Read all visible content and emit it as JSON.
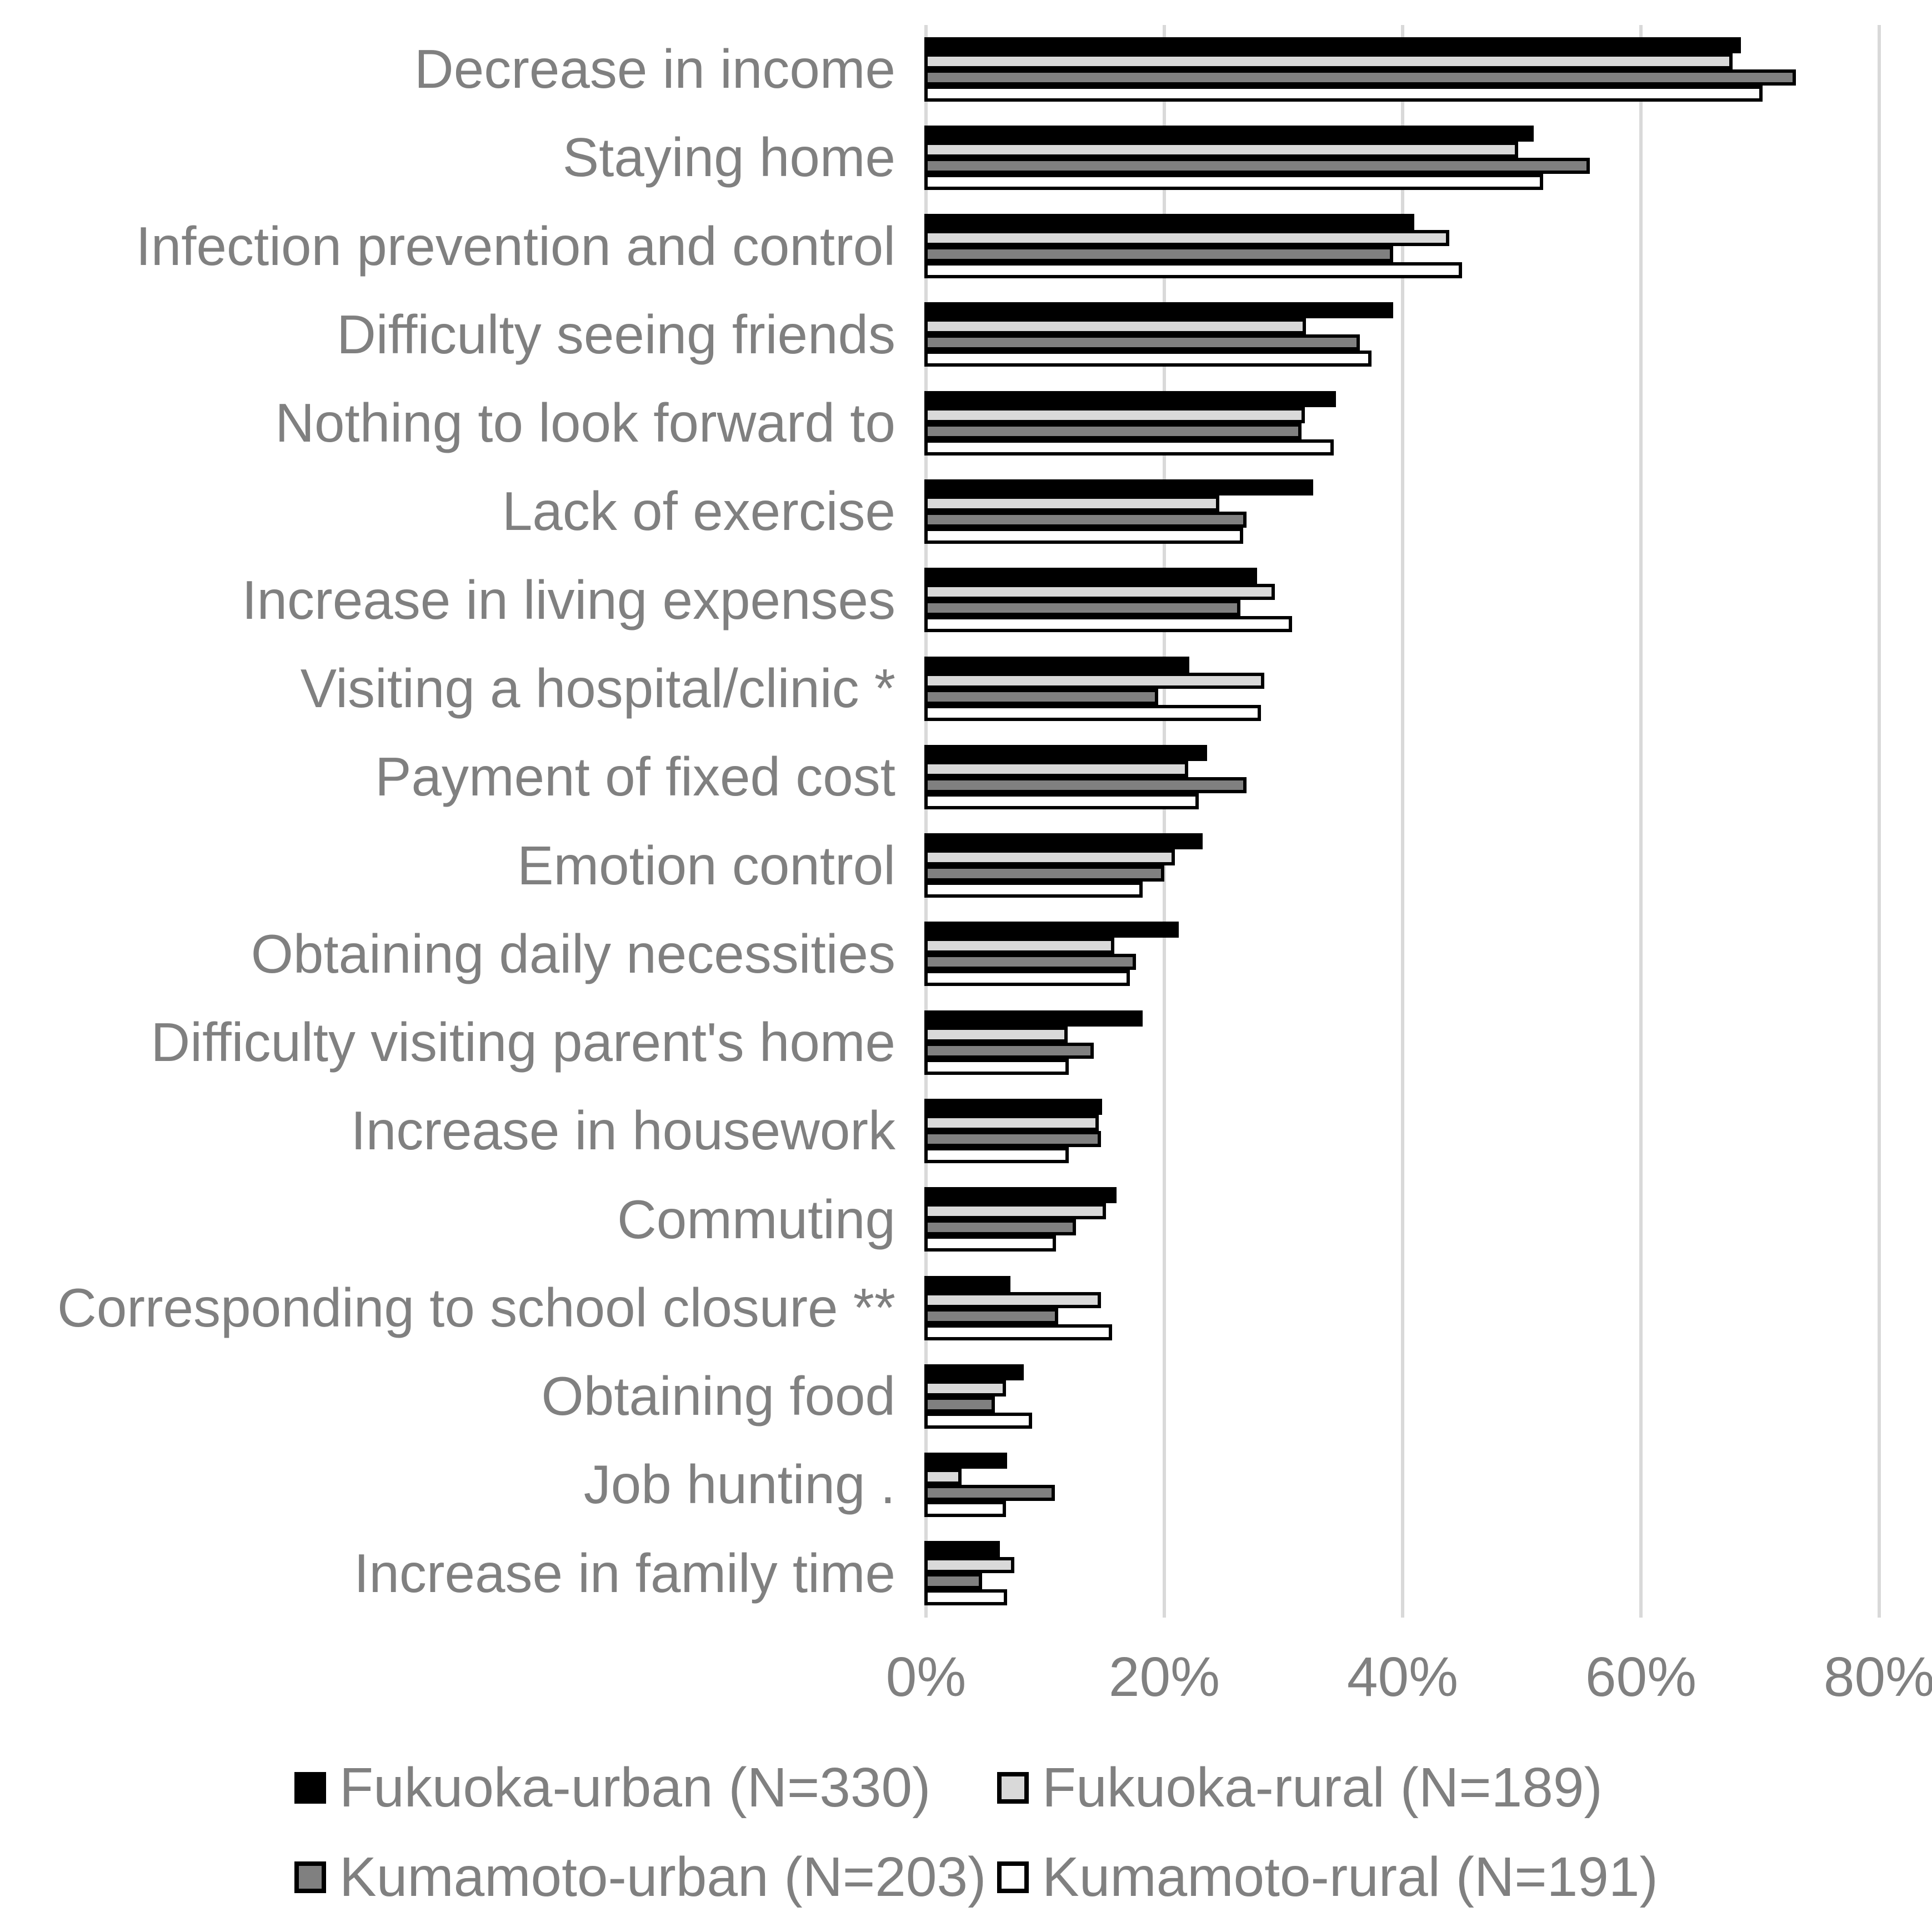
{
  "chart_data": {
    "type": "bar",
    "orientation": "horizontal",
    "title": "",
    "xlabel": "",
    "ylabel": "",
    "grid": true,
    "legend_position": "bottom",
    "background_color": "#ffffff",
    "gridline_color": "#d9d9d9",
    "text_color": "#808080",
    "bar_border_color": "#000000",
    "x_axis": {
      "tick_labels": [
        "0%",
        "20%",
        "40%",
        "60%",
        "80%"
      ],
      "tick_values": [
        0,
        20,
        40,
        60,
        80
      ],
      "max": 80
    },
    "categories": [
      "Decrease in income",
      "Staying home",
      "Infection prevention and control",
      "Difficulty seeing friends",
      "Nothing to look forward to",
      "Lack of exercise",
      "Increase in living expenses",
      "Visiting a hospital/clinic *",
      "Payment of fixed cost",
      "Emotion control",
      "Obtaining daily necessities",
      "Difficulty visiting parent's home",
      "Increase in housework",
      "Commuting",
      "Corresponding to school closure **",
      "Obtaining food",
      "Job hunting .",
      "Increase in family time"
    ],
    "series": [
      {
        "name": "Fukuoka-urban (N=330)",
        "color": "#000000",
        "values": [
          68.4,
          51.0,
          41.0,
          39.2,
          34.4,
          32.5,
          27.8,
          22.1,
          23.6,
          23.2,
          21.2,
          18.2,
          14.8,
          16.0,
          7.1,
          8.2,
          6.8,
          6.2
        ]
      },
      {
        "name": "Fukuoka-rural (N=189)",
        "color": "#d9d9d9",
        "values": [
          67.7,
          49.7,
          43.9,
          31.9,
          31.8,
          24.6,
          29.3,
          28.4,
          22.0,
          20.9,
          15.8,
          11.9,
          14.5,
          15.1,
          14.7,
          6.7,
          3.0,
          7.4
        ]
      },
      {
        "name": "Kumamoto-urban (N=203)",
        "color": "#808080",
        "values": [
          73.0,
          55.7,
          39.2,
          36.4,
          31.5,
          26.9,
          26.4,
          19.5,
          26.9,
          20.0,
          17.6,
          14.1,
          14.7,
          12.6,
          11.1,
          5.8,
          10.8,
          4.7
        ]
      },
      {
        "name": "Kumamoto-rural (N=191)",
        "color": "#ffffff",
        "values": [
          70.2,
          51.8,
          45.0,
          37.4,
          34.2,
          26.6,
          30.7,
          28.1,
          22.9,
          18.2,
          17.1,
          12.0,
          12.0,
          10.9,
          15.6,
          8.9,
          6.7,
          6.8
        ]
      }
    ]
  }
}
